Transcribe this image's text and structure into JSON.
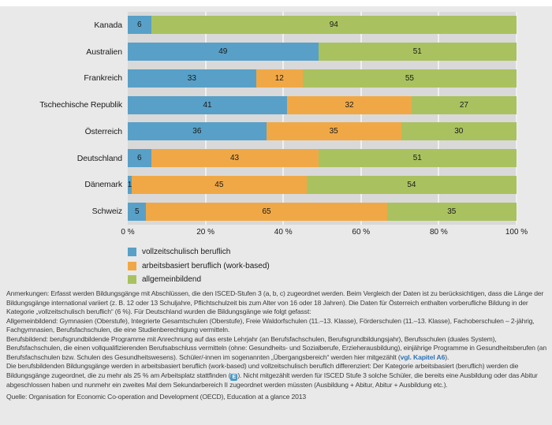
{
  "page": {
    "background": "#E9E9E9"
  },
  "chart_data": {
    "type": "bar",
    "stacked": true,
    "orientation": "horizontal",
    "title": "",
    "categories": [
      "Kanada",
      "Australien",
      "Frankreich",
      "Tschechische Republik",
      "Österreich",
      "Deutschland",
      "Dänemark",
      "Schweiz"
    ],
    "series": [
      {
        "name": "vollzeitschulisch beruflich",
        "color": "#58A0C7",
        "values": [
          6,
          49,
          33,
          41,
          36,
          6,
          1,
          5
        ]
      },
      {
        "name": "arbeitsbasiert beruflich (work-based)",
        "color": "#F0A846",
        "values": [
          0,
          0,
          12,
          32,
          35,
          43,
          45,
          65
        ]
      },
      {
        "name": "allgemeinbildend",
        "color": "#A9C25F",
        "values": [
          94,
          51,
          55,
          27,
          30,
          51,
          54,
          35
        ]
      }
    ],
    "x_ticks": [
      "0 %",
      "20 %",
      "40 %",
      "60 %",
      "80 %",
      "100 %"
    ],
    "xlim": [
      0,
      100
    ],
    "grid": "vertical white gridlines every 20 %",
    "legend_position": "bottom-left",
    "plot_background": "#D9D9D9"
  },
  "notes": {
    "p1": "Anmerkungen: Erfasst werden Bildungsgänge mit Abschlüssen, die den ISCED-Stufen 3 (a, b, c) zugeordnet werden. Beim Vergleich der Daten ist zu berücksichtigen, dass die Länge der Bildungsgänge international variiert (z. B. 12 oder 13 Schuljahre, Pflichtschulzeit bis zum Alter von 16 oder 18 Jahren). Die Daten für Österreich enthalten vorberufliche Bildung in der Kategorie „vollzeitschulisch beruflich“ (6 %). Für Deutschland wurden die Bildungsgänge wie folgt gefasst:",
    "p2": "Allgemeinbildend: Gymnasien (Oberstufe), Integrierte Gesamtschulen (Oberstufe), Freie Waldorfschulen (11.–13. Klasse), Förderschulen (11.–13. Klasse), Fachoberschulen – 2-jährig, Fachgymnasien, Berufsfachschulen, die eine Studienberechtigung vermitteln.",
    "p3a": "Berufsbildend: berufsgrundbildende Programme mit Anrechnung auf das erste Lehrjahr (an Berufsfachschulen, Berufsgrundbildungsjahr), Berufsschulen (duales System), Berufsfachschulen, die einen vollqualifizierenden Berufsabschluss vermitteln (ohne: Gesundheits- und Sozialberufe, Erzieherausbildung), einjährige Programme in Gesundheitsberufen (an Berufsfachschulen bzw. Schulen des Gesundheitswesens). Schüler/-innen im sogenannten „Übergangsbereich“ werden hier mitgezählt (",
    "p3_link": "vgl. Kapitel A6",
    "p3b": ").",
    "p4a": "Die berufsbildenden Bildungsgänge werden in arbeitsbasiert beruflich (work-based) und vollzeitschulisch beruflich differenziert: Der Kategorie arbeitsbasiert (beruflich) werden die Bildungsgänge zugeordnet, die zu mehr als 25 % am Arbeitsplatz stattfinden (",
    "p4_icon": "E",
    "p4b": "). Nicht mitgezählt werden für ISCED Stufe 3 solche Schüler, die bereits eine Ausbildung oder das Abitur abgeschlossen haben und nunmehr ein zweites Mal dem Sekundarbereich II zugeordnet werden müssten (Ausbildung + Abitur, Abitur + Ausbildung etc.)."
  },
  "source": "Quelle: Organisation for Economic Co-operation and Development (OECD), Education at a glance 2013"
}
